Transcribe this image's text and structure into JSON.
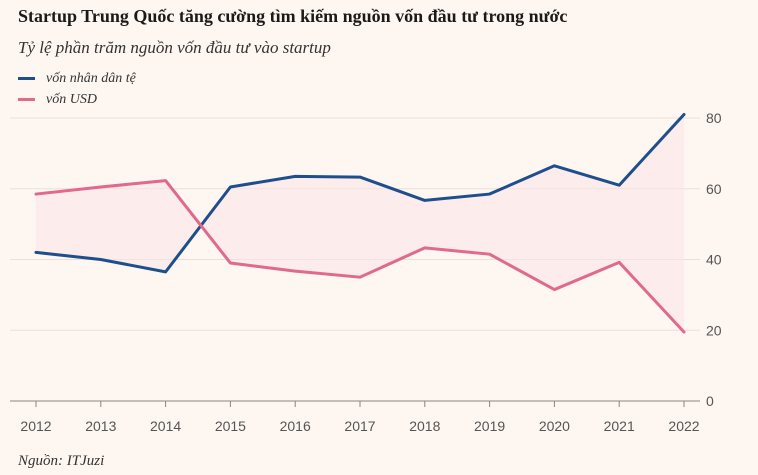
{
  "chart_data": {
    "type": "line",
    "title": "Startup Trung Quốc tăng cường tìm kiếm nguồn vốn đầu tư trong nước",
    "subtitle": "Tỷ lệ phần trăm nguồn vốn đầu tư vào startup",
    "xlabel": "",
    "ylabel": "",
    "x": [
      "2012",
      "2013",
      "2014",
      "2015",
      "2016",
      "2017",
      "2018",
      "2019",
      "2020",
      "2021",
      "2022"
    ],
    "ylim": [
      0,
      80
    ],
    "yticks": [
      "0",
      "20",
      "40",
      "60",
      "80"
    ],
    "legend_position": "top-left",
    "grid": true,
    "series": [
      {
        "name": "vốn nhân dân tệ",
        "color": "#1f4e8c",
        "values": [
          42,
          40,
          36.5,
          60.5,
          63.5,
          63.3,
          56.7,
          58.5,
          66.5,
          61,
          81
        ]
      },
      {
        "name": "vốn USD",
        "color": "#e0698e",
        "values": [
          58.5,
          60.5,
          62.3,
          39,
          36.7,
          35,
          43.3,
          41.5,
          31.5,
          39.2,
          19.5
        ]
      }
    ],
    "source": "Nguồn: ITJuzi"
  }
}
